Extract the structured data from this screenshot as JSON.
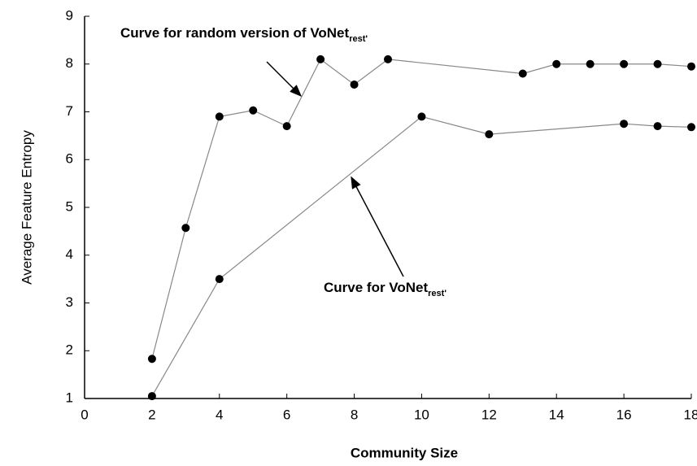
{
  "chart_data": {
    "type": "line",
    "x_label": "Community Size",
    "y_label": "Average Feature Entropy",
    "xlim": [
      0,
      18
    ],
    "xticks": [
      0,
      2,
      4,
      6,
      8,
      10,
      12,
      14,
      16,
      18
    ],
    "ylim": [
      1,
      9
    ],
    "yticks": [
      1,
      2,
      3,
      4,
      5,
      6,
      7,
      8,
      9
    ],
    "annotations": [
      {
        "text": "Curve for random version of VoNet",
        "subscript": "rest'"
      },
      {
        "text": "Curve for VoNet",
        "subscript": "rest'"
      }
    ],
    "series": [
      {
        "name": "Curve for random version of VoNet rest'",
        "color": "#000000",
        "line_color": "#888888",
        "x": [
          2,
          3,
          4,
          5,
          6,
          7,
          8,
          9,
          13,
          14,
          15,
          16,
          17,
          18
        ],
        "values": [
          1.83,
          4.57,
          6.9,
          7.03,
          6.7,
          8.1,
          7.57,
          8.1,
          7.8,
          8.0,
          8.0,
          8.0,
          8.0,
          7.95
        ]
      },
      {
        "name": "Curve for VoNet rest'",
        "color": "#000000",
        "line_color": "#888888",
        "x": [
          2,
          4,
          10,
          12,
          16,
          17,
          18
        ],
        "values": [
          1.05,
          3.5,
          6.9,
          6.53,
          6.75,
          6.7,
          6.68
        ]
      }
    ]
  }
}
